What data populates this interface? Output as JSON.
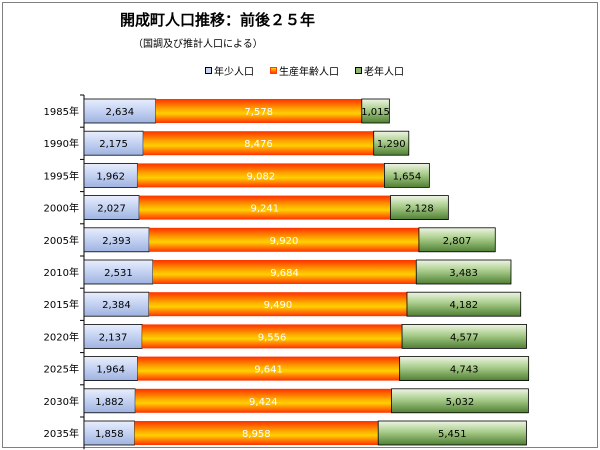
{
  "title": "開成町人口推移：前後２５年",
  "subtitle": "（国調及び推計人口による）",
  "colors": {
    "young": "#c8d6f5",
    "working": "#ff7a00",
    "old": "#8fb86a"
  },
  "chart_data": {
    "type": "bar",
    "orientation": "horizontal",
    "stacked": true,
    "categories": [
      "1985年",
      "1990年",
      "1995年",
      "2000年",
      "2005年",
      "2010年",
      "2015年",
      "2020年",
      "2025年",
      "2030年",
      "2035年"
    ],
    "series": [
      {
        "name": "年少人口",
        "values": [
          2634,
          2175,
          1962,
          2027,
          2393,
          2531,
          2384,
          2137,
          1964,
          1882,
          1858
        ]
      },
      {
        "name": "生産年齢人口",
        "values": [
          7578,
          8476,
          9082,
          9241,
          9920,
          9684,
          9490,
          9556,
          9641,
          9424,
          8958
        ]
      },
      {
        "name": "老年人口",
        "values": [
          1015,
          1290,
          1654,
          2128,
          2807,
          3483,
          4182,
          4577,
          4743,
          5032,
          5451
        ]
      }
    ],
    "labels": [
      [
        "2,634",
        "7,578",
        "1,015"
      ],
      [
        "2,175",
        "8,476",
        "1,290"
      ],
      [
        "1,962",
        "9,082",
        "1,654"
      ],
      [
        "2,027",
        "9,241",
        "2,128"
      ],
      [
        "2,393",
        "9,920",
        "2,807"
      ],
      [
        "2,531",
        "9,684",
        "3,483"
      ],
      [
        "2,384",
        "9,490",
        "4,182"
      ],
      [
        "2,137",
        "9,556",
        "4,577"
      ],
      [
        "1,964",
        "9,641",
        "4,743"
      ],
      [
        "1,882",
        "9,424",
        "5,032"
      ],
      [
        "1,858",
        "8,958",
        "5,451"
      ]
    ],
    "legend_position": "top",
    "grid": false
  }
}
